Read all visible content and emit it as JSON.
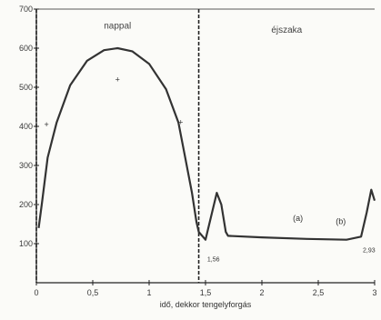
{
  "chart_data": {
    "type": "line",
    "xlabel": "idő, dekkor tengelyforgás",
    "ylabel": "",
    "xlim": [
      0,
      3.0
    ],
    "ylim": [
      0,
      700
    ],
    "x_ticks": [
      {
        "value": 0,
        "label": "0"
      },
      {
        "value": 0.5,
        "label": "0,5"
      },
      {
        "value": 1.0,
        "label": "1"
      },
      {
        "value": 1.5,
        "label": "1,5"
      },
      {
        "value": 2.0,
        "label": "2"
      },
      {
        "value": 2.5,
        "label": "2,5"
      },
      {
        "value": 3.0,
        "label": "3"
      }
    ],
    "y_ticks": [
      {
        "value": 100,
        "label": "100"
      },
      {
        "value": 200,
        "label": "200"
      },
      {
        "value": 300,
        "label": "300"
      },
      {
        "value": 400,
        "label": "400"
      },
      {
        "value": 500,
        "label": "500"
      },
      {
        "value": 600,
        "label": "600"
      },
      {
        "value": 700,
        "label": "700"
      }
    ],
    "dividers": [
      0.0,
      1.44
    ],
    "regions": [
      {
        "label": "nappal",
        "x": 0.72,
        "y": 650
      },
      {
        "label": "éjszaka",
        "x": 2.22,
        "y": 640
      }
    ],
    "series": [
      {
        "points": [
          [
            0.02,
            140
          ],
          [
            0.05,
            205
          ],
          [
            0.1,
            320
          ],
          [
            0.18,
            410
          ],
          [
            0.3,
            505
          ],
          [
            0.45,
            568
          ],
          [
            0.6,
            595
          ],
          [
            0.72,
            600
          ],
          [
            0.85,
            592
          ],
          [
            1.0,
            560
          ],
          [
            1.15,
            495
          ],
          [
            1.26,
            410
          ],
          [
            1.32,
            320
          ],
          [
            1.38,
            230
          ],
          [
            1.42,
            155
          ],
          [
            1.44,
            130
          ],
          [
            1.5,
            110
          ],
          [
            1.55,
            170
          ],
          [
            1.6,
            230
          ],
          [
            1.64,
            200
          ],
          [
            1.68,
            130
          ],
          [
            1.7,
            120
          ],
          [
            2.0,
            116
          ],
          [
            2.4,
            112
          ],
          [
            2.75,
            110
          ],
          [
            2.88,
            118
          ],
          [
            2.93,
            180
          ],
          [
            2.97,
            238
          ],
          [
            3.0,
            210
          ]
        ]
      }
    ],
    "markers": [
      {
        "x": 0.72,
        "y": 520,
        "label": "+"
      },
      {
        "x": 0.09,
        "y": 405,
        "label": "+"
      },
      {
        "x": 1.28,
        "y": 410,
        "label": "+"
      }
    ],
    "annotations": [
      {
        "label": "(a)",
        "x": 2.32,
        "y": 158
      },
      {
        "label": "(b)",
        "x": 2.7,
        "y": 150
      },
      {
        "label": "1,56",
        "x": 1.57,
        "y": 55
      },
      {
        "label": "2,93",
        "x": 2.95,
        "y": 78
      }
    ],
    "colors": {
      "line": "#333333",
      "axis": "#222222",
      "background": "#fbfbf8"
    }
  }
}
